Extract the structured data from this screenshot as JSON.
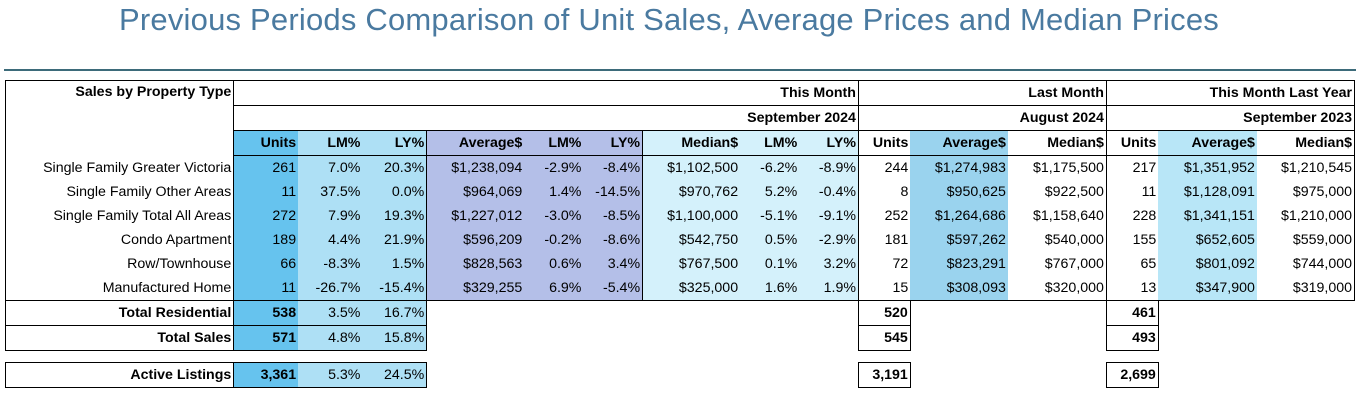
{
  "title": "Previous Periods Comparison of Unit Sales, Average Prices and Median Prices",
  "header": {
    "row_label": "Sales by Property Type",
    "this_month": "This Month",
    "this_month_period": "September 2024",
    "last_month": "Last Month",
    "last_month_period": "August 2024",
    "last_year": "This Month Last Year",
    "last_year_period": "September 2023"
  },
  "columns": {
    "units": "Units",
    "lm_pct": "LM%",
    "ly_pct": "LY%",
    "average": "Average$",
    "median": "Median$"
  },
  "rows": [
    {
      "type": "Single Family Greater Victoria",
      "tm_units": "261",
      "tm_units_lm": "7.0%",
      "tm_units_ly": "20.3%",
      "tm_avg": "$1,238,094",
      "tm_avg_lm": "-2.9%",
      "tm_avg_ly": "-8.4%",
      "tm_med": "$1,102,500",
      "tm_med_lm": "-6.2%",
      "tm_med_ly": "-8.9%",
      "lm_units": "244",
      "lm_avg": "$1,274,983",
      "lm_med": "$1,175,500",
      "ly_units": "217",
      "ly_avg": "$1,351,952",
      "ly_med": "$1,210,545"
    },
    {
      "type": "Single Family Other Areas",
      "tm_units": "11",
      "tm_units_lm": "37.5%",
      "tm_units_ly": "0.0%",
      "tm_avg": "$964,069",
      "tm_avg_lm": "1.4%",
      "tm_avg_ly": "-14.5%",
      "tm_med": "$970,762",
      "tm_med_lm": "5.2%",
      "tm_med_ly": "-0.4%",
      "lm_units": "8",
      "lm_avg": "$950,625",
      "lm_med": "$922,500",
      "ly_units": "11",
      "ly_avg": "$1,128,091",
      "ly_med": "$975,000"
    },
    {
      "type": "Single Family Total All Areas",
      "tm_units": "272",
      "tm_units_lm": "7.9%",
      "tm_units_ly": "19.3%",
      "tm_avg": "$1,227,012",
      "tm_avg_lm": "-3.0%",
      "tm_avg_ly": "-8.5%",
      "tm_med": "$1,100,000",
      "tm_med_lm": "-5.1%",
      "tm_med_ly": "-9.1%",
      "lm_units": "252",
      "lm_avg": "$1,264,686",
      "lm_med": "$1,158,640",
      "ly_units": "228",
      "ly_avg": "$1,341,151",
      "ly_med": "$1,210,000"
    },
    {
      "type": "Condo Apartment",
      "tm_units": "189",
      "tm_units_lm": "4.4%",
      "tm_units_ly": "21.9%",
      "tm_avg": "$596,209",
      "tm_avg_lm": "-0.2%",
      "tm_avg_ly": "-8.6%",
      "tm_med": "$542,750",
      "tm_med_lm": "0.5%",
      "tm_med_ly": "-2.9%",
      "lm_units": "181",
      "lm_avg": "$597,262",
      "lm_med": "$540,000",
      "ly_units": "155",
      "ly_avg": "$652,605",
      "ly_med": "$559,000"
    },
    {
      "type": "Row/Townhouse",
      "tm_units": "66",
      "tm_units_lm": "-8.3%",
      "tm_units_ly": "1.5%",
      "tm_avg": "$828,563",
      "tm_avg_lm": "0.6%",
      "tm_avg_ly": "3.4%",
      "tm_med": "$767,500",
      "tm_med_lm": "0.1%",
      "tm_med_ly": "3.2%",
      "lm_units": "72",
      "lm_avg": "$823,291",
      "lm_med": "$767,000",
      "ly_units": "65",
      "ly_avg": "$801,092",
      "ly_med": "$744,000"
    },
    {
      "type": "Manufactured Home",
      "tm_units": "11",
      "tm_units_lm": "-26.7%",
      "tm_units_ly": "-15.4%",
      "tm_avg": "$329,255",
      "tm_avg_lm": "6.9%",
      "tm_avg_ly": "-5.4%",
      "tm_med": "$325,000",
      "tm_med_lm": "1.6%",
      "tm_med_ly": "1.9%",
      "lm_units": "15",
      "lm_avg": "$308,093",
      "lm_med": "$320,000",
      "ly_units": "13",
      "ly_avg": "$347,900",
      "ly_med": "$319,000"
    }
  ],
  "totals": {
    "residential": {
      "label": "Total Residential",
      "tm_units": "538",
      "tm_lm": "3.5%",
      "tm_ly": "16.7%",
      "lm_units": "520",
      "ly_units": "461"
    },
    "sales": {
      "label": "Total Sales",
      "tm_units": "571",
      "tm_lm": "4.8%",
      "tm_ly": "15.8%",
      "lm_units": "545",
      "ly_units": "493"
    }
  },
  "active": {
    "label": "Active Listings",
    "tm_units": "3,361",
    "tm_lm": "5.3%",
    "tm_ly": "24.5%",
    "lm_units": "3,191",
    "ly_units": "2,699"
  },
  "colors": {
    "title": "#4a7aa0",
    "units": "#66c3ee",
    "pct": "#aee0f5",
    "average": "#b4bfe8",
    "median": "#d4f1fb",
    "last_month_average": "#9ad3ee",
    "last_year_average": "#b8e6f7"
  }
}
